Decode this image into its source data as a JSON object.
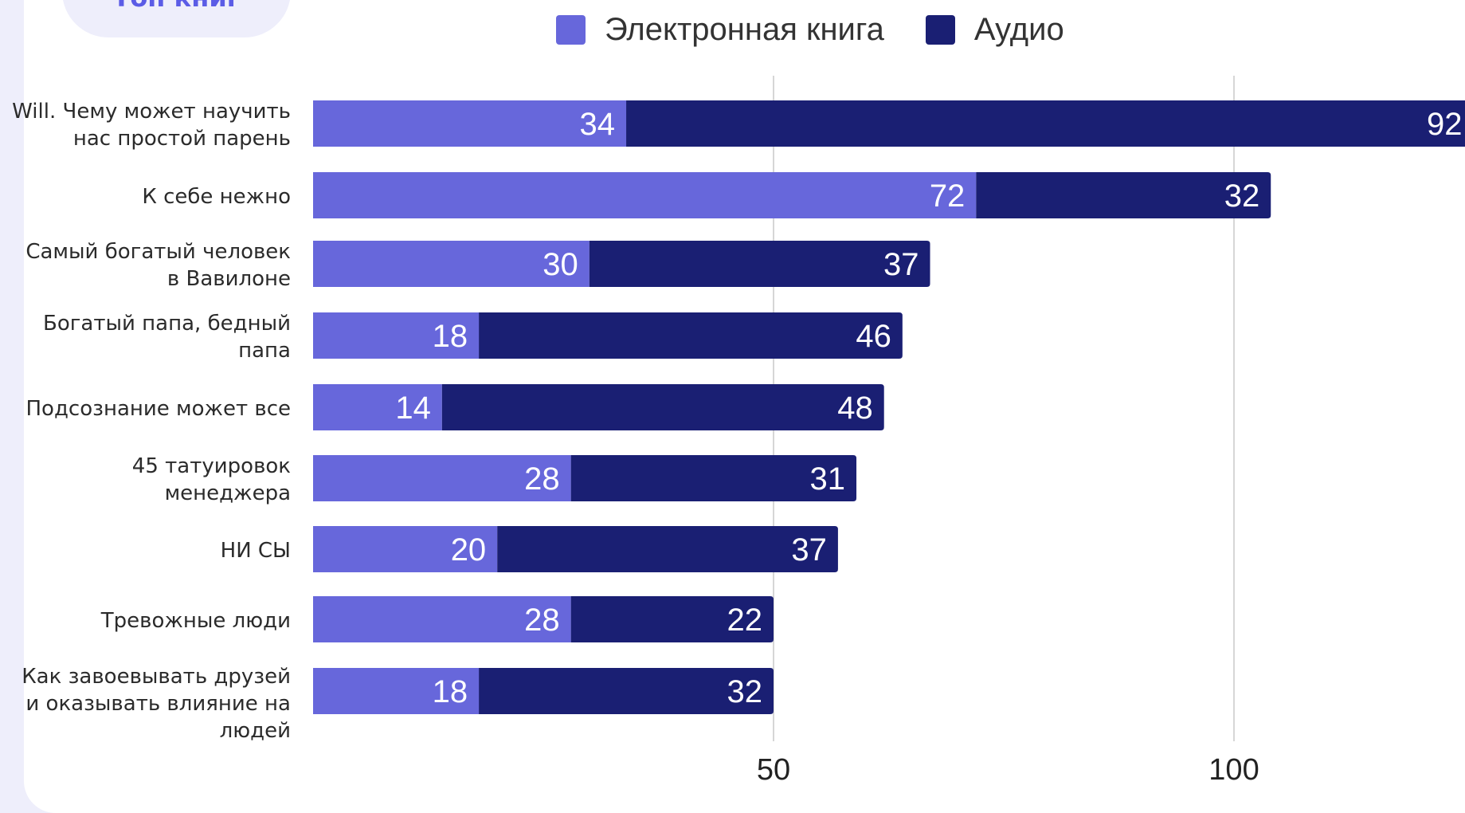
{
  "header": {
    "title": "Топ книг"
  },
  "chart_data": {
    "type": "bar",
    "orientation": "horizontal",
    "stacked": true,
    "categories": [
      [
        "Will. Чему может научить",
        "нас простой парень"
      ],
      [
        "К себе нежно"
      ],
      [
        "Самый богатый человек",
        "в Вавилоне"
      ],
      [
        "Богатый папа, бедный",
        "папа"
      ],
      [
        "Подсознание может все"
      ],
      [
        "45 татуировок",
        "менеджера"
      ],
      [
        "НИ СЫ"
      ],
      [
        "Тревожные люди"
      ],
      [
        "Как завоевывать друзей",
        "и оказывать влияние на",
        "людей"
      ]
    ],
    "series": [
      {
        "name": "Электронная книга",
        "color": "#6767db",
        "values": [
          34,
          72,
          30,
          18,
          14,
          28,
          20,
          28,
          18
        ]
      },
      {
        "name": "Аудио",
        "color": "#1a1f73",
        "values": [
          92,
          32,
          37,
          46,
          48,
          31,
          37,
          22,
          32
        ]
      }
    ],
    "xticks": [
      50,
      100
    ],
    "xlim": [
      0,
      126
    ],
    "grid": true,
    "data_labels": true,
    "legend_position": "top"
  }
}
